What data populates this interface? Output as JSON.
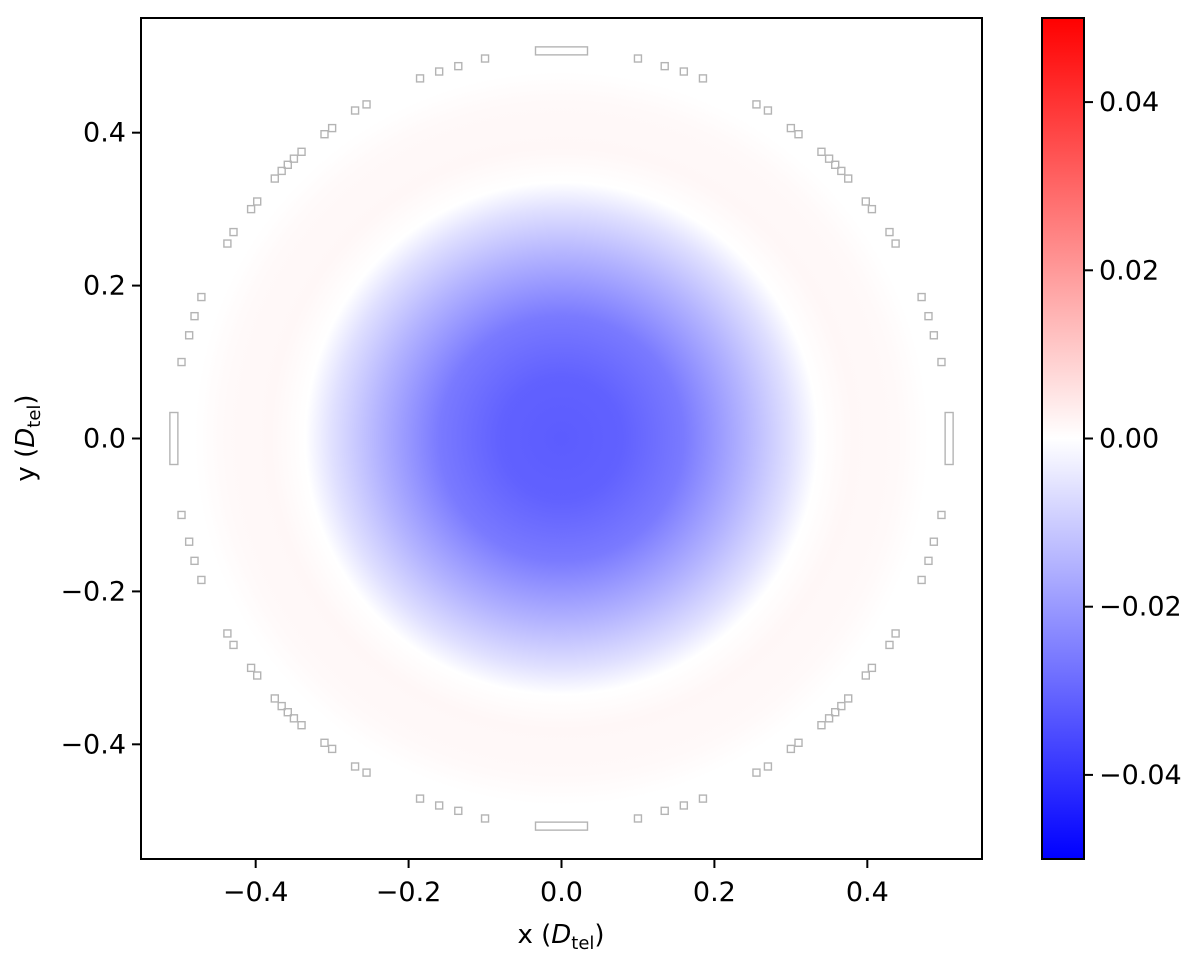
{
  "chart_data": {
    "type": "heatmap",
    "title": "",
    "xlabel": {
      "main": "x (",
      "italic": "D",
      "sub": "tel",
      "close": ")"
    },
    "ylabel": {
      "main": "y (",
      "italic": "D",
      "sub": "tel",
      "close": ")"
    },
    "xlim": [
      -0.55,
      0.55
    ],
    "ylim": [
      -0.55,
      0.55
    ],
    "x_ticks": [
      -0.4,
      -0.2,
      0.0,
      0.2,
      0.4
    ],
    "x_tick_labels": [
      "−0.4",
      "−0.2",
      "0.0",
      "0.2",
      "0.4"
    ],
    "y_ticks": [
      -0.4,
      -0.2,
      0.0,
      0.2,
      0.4
    ],
    "y_tick_labels": [
      "−0.4",
      "−0.2",
      "0.0",
      "0.2",
      "0.4"
    ],
    "colormap": "bwr",
    "colors": {
      "min": "#0000ff",
      "mid": "#ffffff",
      "max": "#ff0000"
    },
    "vmin": -0.05,
    "vmax": 0.05,
    "colorbar_ticks": [
      0.04,
      0.02,
      0.0,
      -0.02,
      -0.04
    ],
    "colorbar_tick_labels": [
      "0.04",
      "0.02",
      "0.00",
      "−0.02",
      "−0.04"
    ],
    "field": {
      "shape": "radial",
      "outer_radius": 0.48,
      "radial_profile": [
        {
          "r": 0.0,
          "value": -0.032
        },
        {
          "r": 0.08,
          "value": -0.031
        },
        {
          "r": 0.16,
          "value": -0.026
        },
        {
          "r": 0.24,
          "value": -0.015
        },
        {
          "r": 0.3,
          "value": -0.006
        },
        {
          "r": 0.335,
          "value": 0.0
        },
        {
          "r": 0.38,
          "value": 0.0015
        },
        {
          "r": 0.44,
          "value": 0.0012
        },
        {
          "r": 0.48,
          "value": 0.0
        }
      ]
    },
    "markers": {
      "edge_color": "#b4b4b4",
      "bars": [
        {
          "x": 0.0,
          "y": 0.507,
          "orientation": "horizontal"
        },
        {
          "x": 0.0,
          "y": -0.507,
          "orientation": "horizontal"
        },
        {
          "x": -0.507,
          "y": 0.0,
          "orientation": "vertical"
        },
        {
          "x": 0.507,
          "y": 0.0,
          "orientation": "vertical"
        }
      ],
      "squares": [
        [
          -0.1,
          0.497
        ],
        [
          -0.135,
          0.487
        ],
        [
          -0.16,
          0.48
        ],
        [
          -0.185,
          0.471
        ],
        [
          -0.255,
          0.437
        ],
        [
          -0.27,
          0.429
        ],
        [
          -0.3,
          0.406
        ],
        [
          -0.31,
          0.398
        ],
        [
          -0.34,
          0.375
        ],
        [
          -0.35,
          0.366
        ],
        [
          -0.358,
          0.358
        ],
        [
          -0.366,
          0.35
        ],
        [
          -0.375,
          0.34
        ],
        [
          -0.398,
          0.31
        ],
        [
          -0.406,
          0.3
        ],
        [
          -0.429,
          0.27
        ],
        [
          -0.437,
          0.255
        ],
        [
          -0.471,
          0.185
        ],
        [
          -0.48,
          0.16
        ],
        [
          -0.487,
          0.135
        ],
        [
          -0.497,
          0.1
        ],
        [
          0.1,
          0.497
        ],
        [
          0.135,
          0.487
        ],
        [
          0.16,
          0.48
        ],
        [
          0.185,
          0.471
        ],
        [
          0.255,
          0.437
        ],
        [
          0.27,
          0.429
        ],
        [
          0.3,
          0.406
        ],
        [
          0.31,
          0.398
        ],
        [
          0.34,
          0.375
        ],
        [
          0.35,
          0.366
        ],
        [
          0.358,
          0.358
        ],
        [
          0.366,
          0.35
        ],
        [
          0.375,
          0.34
        ],
        [
          0.398,
          0.31
        ],
        [
          0.406,
          0.3
        ],
        [
          0.429,
          0.27
        ],
        [
          0.437,
          0.255
        ],
        [
          0.471,
          0.185
        ],
        [
          0.48,
          0.16
        ],
        [
          0.487,
          0.135
        ],
        [
          0.497,
          0.1
        ],
        [
          -0.1,
          -0.497
        ],
        [
          -0.135,
          -0.487
        ],
        [
          -0.16,
          -0.48
        ],
        [
          -0.185,
          -0.471
        ],
        [
          -0.255,
          -0.437
        ],
        [
          -0.27,
          -0.429
        ],
        [
          -0.3,
          -0.406
        ],
        [
          -0.31,
          -0.398
        ],
        [
          -0.34,
          -0.375
        ],
        [
          -0.35,
          -0.366
        ],
        [
          -0.358,
          -0.358
        ],
        [
          -0.366,
          -0.35
        ],
        [
          -0.375,
          -0.34
        ],
        [
          -0.398,
          -0.31
        ],
        [
          -0.406,
          -0.3
        ],
        [
          -0.429,
          -0.27
        ],
        [
          -0.437,
          -0.255
        ],
        [
          -0.471,
          -0.185
        ],
        [
          -0.48,
          -0.16
        ],
        [
          -0.487,
          -0.135
        ],
        [
          -0.497,
          -0.1
        ],
        [
          0.1,
          -0.497
        ],
        [
          0.135,
          -0.487
        ],
        [
          0.16,
          -0.48
        ],
        [
          0.185,
          -0.471
        ],
        [
          0.255,
          -0.437
        ],
        [
          0.27,
          -0.429
        ],
        [
          0.3,
          -0.406
        ],
        [
          0.31,
          -0.398
        ],
        [
          0.34,
          -0.375
        ],
        [
          0.35,
          -0.366
        ],
        [
          0.358,
          -0.358
        ],
        [
          0.366,
          -0.35
        ],
        [
          0.375,
          -0.34
        ],
        [
          0.398,
          -0.31
        ],
        [
          0.406,
          -0.3
        ],
        [
          0.429,
          -0.27
        ],
        [
          0.437,
          -0.255
        ],
        [
          0.471,
          -0.185
        ],
        [
          0.48,
          -0.16
        ],
        [
          0.487,
          -0.135
        ],
        [
          0.497,
          -0.1
        ]
      ]
    }
  }
}
